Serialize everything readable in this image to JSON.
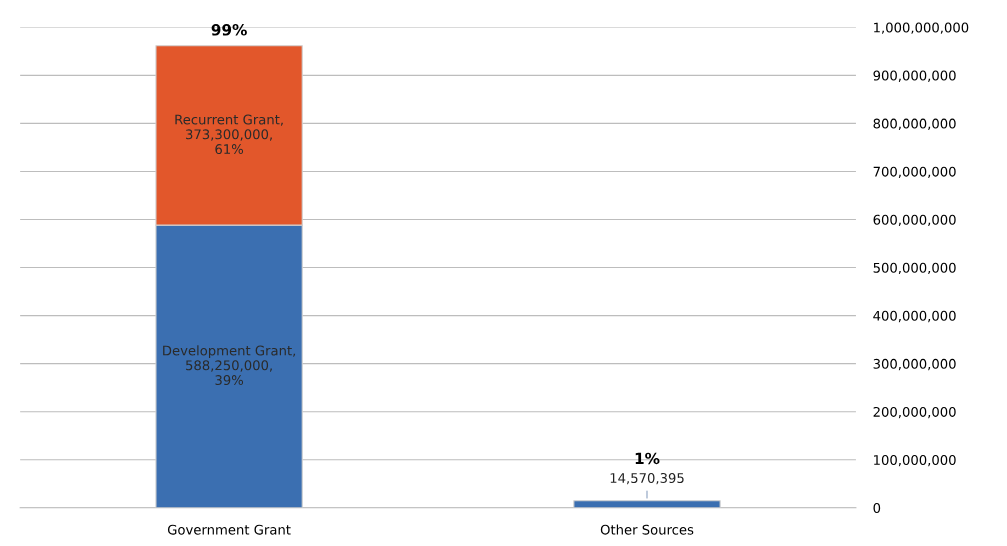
{
  "chart_data": {
    "type": "bar",
    "stacked": true,
    "categories": [
      "Government Grant",
      "Other Sources"
    ],
    "series": [
      {
        "color": "#3b6fb1",
        "values": [
          588250000,
          14570395
        ],
        "value_labels": [
          "Development Grant,\n588,250,000,\n39%",
          "14,570,395"
        ]
      },
      {
        "color": "#e2572b",
        "values": [
          373300000,
          null
        ],
        "value_labels": [
          "Recurrent Grant,\n373,300,000,\n61%",
          null
        ]
      }
    ],
    "annotations": [
      {
        "text": "99%",
        "x": "Government Grant",
        "y": 961550000
      },
      {
        "text": "1%",
        "x": "Other Sources",
        "y": 14570395
      }
    ],
    "ylim": [
      0,
      1000000000
    ],
    "yticks": [
      {
        "value": 0,
        "label": "0"
      },
      {
        "value": 100000000,
        "label": "100,000,000"
      },
      {
        "value": 200000000,
        "label": "200,000,000"
      },
      {
        "value": 300000000,
        "label": "300,000,000"
      },
      {
        "value": 400000000,
        "label": "400,000,000"
      },
      {
        "value": 500000000,
        "label": "500,000,000"
      },
      {
        "value": 600000000,
        "label": "600,000,000"
      },
      {
        "value": 700000000,
        "label": "700,000,000"
      },
      {
        "value": 800000000,
        "label": "800,000,000"
      },
      {
        "value": 900000000,
        "label": "900,000,000"
      },
      {
        "value": 1000000000,
        "label": "1,000,000,000"
      }
    ],
    "grid": "y",
    "legend": false
  }
}
